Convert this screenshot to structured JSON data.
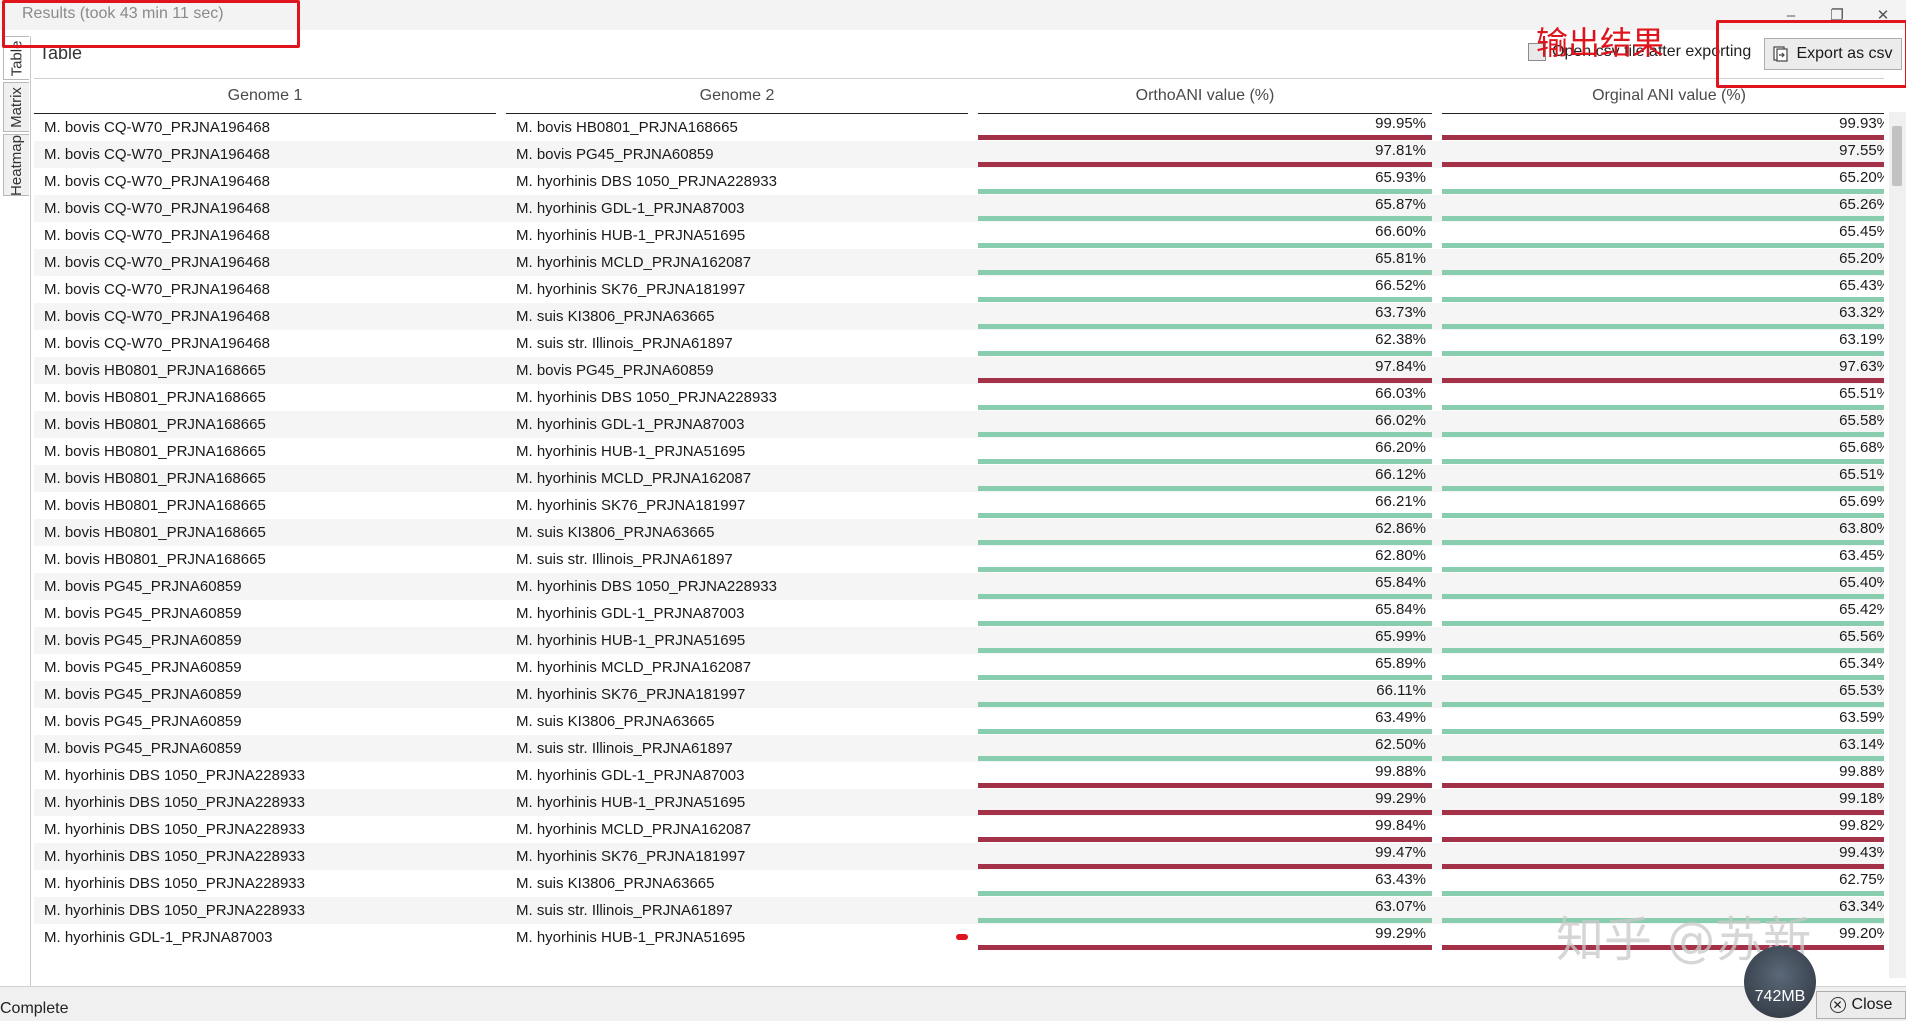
{
  "window": {
    "title": "Results (took 43 min 11 sec)",
    "controls": [
      "–",
      "❐",
      "✕"
    ]
  },
  "annotation": {
    "text": "输出结果"
  },
  "side_tabs": [
    "Table",
    "Matrix",
    "Heatmap"
  ],
  "panel": {
    "title": "Table",
    "open_csv_label": "Open csv file after exporting",
    "export_label": "Export as csv"
  },
  "table": {
    "headers": [
      "Genome 1",
      "Genome 2",
      "OrthoANI value (%)",
      "Orginal ANI value (%)"
    ],
    "rows": [
      {
        "g1": "M. bovis CQ-W70_PRJNA196468",
        "g2": "M. bovis HB0801_PRJNA168665",
        "ortho": "99.95%",
        "orig": "99.93%",
        "ortho_level": "high",
        "orig_level": "high"
      },
      {
        "g1": "M. bovis CQ-W70_PRJNA196468",
        "g2": "M. bovis PG45_PRJNA60859",
        "ortho": "97.81%",
        "orig": "97.55%",
        "ortho_level": "high",
        "orig_level": "high"
      },
      {
        "g1": "M. bovis CQ-W70_PRJNA196468",
        "g2": "M. hyorhinis DBS 1050_PRJNA228933",
        "ortho": "65.93%",
        "orig": "65.20%",
        "ortho_level": "low",
        "orig_level": "low"
      },
      {
        "g1": "M. bovis CQ-W70_PRJNA196468",
        "g2": "M. hyorhinis GDL-1_PRJNA87003",
        "ortho": "65.87%",
        "orig": "65.26%",
        "ortho_level": "low",
        "orig_level": "low"
      },
      {
        "g1": "M. bovis CQ-W70_PRJNA196468",
        "g2": "M. hyorhinis HUB-1_PRJNA51695",
        "ortho": "66.60%",
        "orig": "65.45%",
        "ortho_level": "low",
        "orig_level": "low"
      },
      {
        "g1": "M. bovis CQ-W70_PRJNA196468",
        "g2": "M. hyorhinis MCLD_PRJNA162087",
        "ortho": "65.81%",
        "orig": "65.20%",
        "ortho_level": "low",
        "orig_level": "low"
      },
      {
        "g1": "M. bovis CQ-W70_PRJNA196468",
        "g2": "M. hyorhinis SK76_PRJNA181997",
        "ortho": "66.52%",
        "orig": "65.43%",
        "ortho_level": "low",
        "orig_level": "low"
      },
      {
        "g1": "M. bovis CQ-W70_PRJNA196468",
        "g2": "M. suis KI3806_PRJNA63665",
        "ortho": "63.73%",
        "orig": "63.32%",
        "ortho_level": "low",
        "orig_level": "low"
      },
      {
        "g1": "M. bovis CQ-W70_PRJNA196468",
        "g2": "M. suis str. Illinois_PRJNA61897",
        "ortho": "62.38%",
        "orig": "63.19%",
        "ortho_level": "low",
        "orig_level": "low"
      },
      {
        "g1": "M. bovis HB0801_PRJNA168665",
        "g2": "M. bovis PG45_PRJNA60859",
        "ortho": "97.84%",
        "orig": "97.63%",
        "ortho_level": "high",
        "orig_level": "high"
      },
      {
        "g1": "M. bovis HB0801_PRJNA168665",
        "g2": "M. hyorhinis DBS 1050_PRJNA228933",
        "ortho": "66.03%",
        "orig": "65.51%",
        "ortho_level": "low",
        "orig_level": "low"
      },
      {
        "g1": "M. bovis HB0801_PRJNA168665",
        "g2": "M. hyorhinis GDL-1_PRJNA87003",
        "ortho": "66.02%",
        "orig": "65.58%",
        "ortho_level": "low",
        "orig_level": "low"
      },
      {
        "g1": "M. bovis HB0801_PRJNA168665",
        "g2": "M. hyorhinis HUB-1_PRJNA51695",
        "ortho": "66.20%",
        "orig": "65.68%",
        "ortho_level": "low",
        "orig_level": "low"
      },
      {
        "g1": "M. bovis HB0801_PRJNA168665",
        "g2": "M. hyorhinis MCLD_PRJNA162087",
        "ortho": "66.12%",
        "orig": "65.51%",
        "ortho_level": "low",
        "orig_level": "low"
      },
      {
        "g1": "M. bovis HB0801_PRJNA168665",
        "g2": "M. hyorhinis SK76_PRJNA181997",
        "ortho": "66.21%",
        "orig": "65.69%",
        "ortho_level": "low",
        "orig_level": "low"
      },
      {
        "g1": "M. bovis HB0801_PRJNA168665",
        "g2": "M. suis KI3806_PRJNA63665",
        "ortho": "62.86%",
        "orig": "63.80%",
        "ortho_level": "low",
        "orig_level": "low"
      },
      {
        "g1": "M. bovis HB0801_PRJNA168665",
        "g2": "M. suis str. Illinois_PRJNA61897",
        "ortho": "62.80%",
        "orig": "63.45%",
        "ortho_level": "low",
        "orig_level": "low"
      },
      {
        "g1": "M. bovis PG45_PRJNA60859",
        "g2": "M. hyorhinis DBS 1050_PRJNA228933",
        "ortho": "65.84%",
        "orig": "65.40%",
        "ortho_level": "low",
        "orig_level": "low"
      },
      {
        "g1": "M. bovis PG45_PRJNA60859",
        "g2": "M. hyorhinis GDL-1_PRJNA87003",
        "ortho": "65.84%",
        "orig": "65.42%",
        "ortho_level": "low",
        "orig_level": "low"
      },
      {
        "g1": "M. bovis PG45_PRJNA60859",
        "g2": "M. hyorhinis HUB-1_PRJNA51695",
        "ortho": "65.99%",
        "orig": "65.56%",
        "ortho_level": "low",
        "orig_level": "low"
      },
      {
        "g1": "M. bovis PG45_PRJNA60859",
        "g2": "M. hyorhinis MCLD_PRJNA162087",
        "ortho": "65.89%",
        "orig": "65.34%",
        "ortho_level": "low",
        "orig_level": "low"
      },
      {
        "g1": "M. bovis PG45_PRJNA60859",
        "g2": "M. hyorhinis SK76_PRJNA181997",
        "ortho": "66.11%",
        "orig": "65.53%",
        "ortho_level": "low",
        "orig_level": "low"
      },
      {
        "g1": "M. bovis PG45_PRJNA60859",
        "g2": "M. suis KI3806_PRJNA63665",
        "ortho": "63.49%",
        "orig": "63.59%",
        "ortho_level": "low",
        "orig_level": "low"
      },
      {
        "g1": "M. bovis PG45_PRJNA60859",
        "g2": "M. suis str. Illinois_PRJNA61897",
        "ortho": "62.50%",
        "orig": "63.14%",
        "ortho_level": "low",
        "orig_level": "low"
      },
      {
        "g1": "M. hyorhinis DBS 1050_PRJNA228933",
        "g2": "M. hyorhinis GDL-1_PRJNA87003",
        "ortho": "99.88%",
        "orig": "99.88%",
        "ortho_level": "high",
        "orig_level": "high"
      },
      {
        "g1": "M. hyorhinis DBS 1050_PRJNA228933",
        "g2": "M. hyorhinis HUB-1_PRJNA51695",
        "ortho": "99.29%",
        "orig": "99.18%",
        "ortho_level": "high",
        "orig_level": "high"
      },
      {
        "g1": "M. hyorhinis DBS 1050_PRJNA228933",
        "g2": "M. hyorhinis MCLD_PRJNA162087",
        "ortho": "99.84%",
        "orig": "99.82%",
        "ortho_level": "high",
        "orig_level": "high"
      },
      {
        "g1": "M. hyorhinis DBS 1050_PRJNA228933",
        "g2": "M. hyorhinis SK76_PRJNA181997",
        "ortho": "99.47%",
        "orig": "99.43%",
        "ortho_level": "high",
        "orig_level": "high"
      },
      {
        "g1": "M. hyorhinis DBS 1050_PRJNA228933",
        "g2": "M. suis KI3806_PRJNA63665",
        "ortho": "63.43%",
        "orig": "62.75%",
        "ortho_level": "low",
        "orig_level": "low"
      },
      {
        "g1": "M. hyorhinis DBS 1050_PRJNA228933",
        "g2": "M. suis str. Illinois_PRJNA61897",
        "ortho": "63.07%",
        "orig": "63.34%",
        "ortho_level": "low",
        "orig_level": "low"
      },
      {
        "g1": "M. hyorhinis GDL-1_PRJNA87003",
        "g2": "M. hyorhinis HUB-1_PRJNA51695",
        "ortho": "99.29%",
        "orig": "99.20%",
        "ortho_level": "high",
        "orig_level": "high"
      }
    ]
  },
  "colors": {
    "high_bar": "#a33148",
    "low_bar": "#88cdae",
    "annotation": "#e0141c"
  },
  "status": {
    "text": "Complete",
    "close_label": "Close",
    "memory": "742MB"
  },
  "watermark": "知乎 @苏新"
}
